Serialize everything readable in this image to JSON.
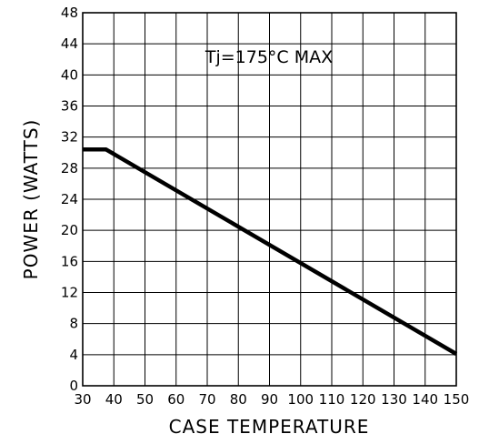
{
  "chart_data": {
    "type": "line",
    "title": "",
    "xlabel": "CASE TEMPERATURE",
    "ylabel": "POWER (WATTS)",
    "xlim": [
      30,
      150
    ],
    "ylim": [
      0,
      48
    ],
    "x_ticks": [
      30,
      40,
      50,
      60,
      70,
      80,
      90,
      100,
      110,
      120,
      130,
      140,
      150
    ],
    "y_ticks": [
      0,
      4,
      8,
      12,
      16,
      20,
      24,
      28,
      32,
      36,
      40,
      44,
      48
    ],
    "grid": true,
    "series": [
      {
        "x": [
          30,
          37.5,
          150
        ],
        "y": [
          30.4,
          30.4,
          4.1
        ],
        "color": "#000000"
      }
    ],
    "annotations": [
      {
        "text": "Tj=175°C  MAX"
      }
    ]
  }
}
